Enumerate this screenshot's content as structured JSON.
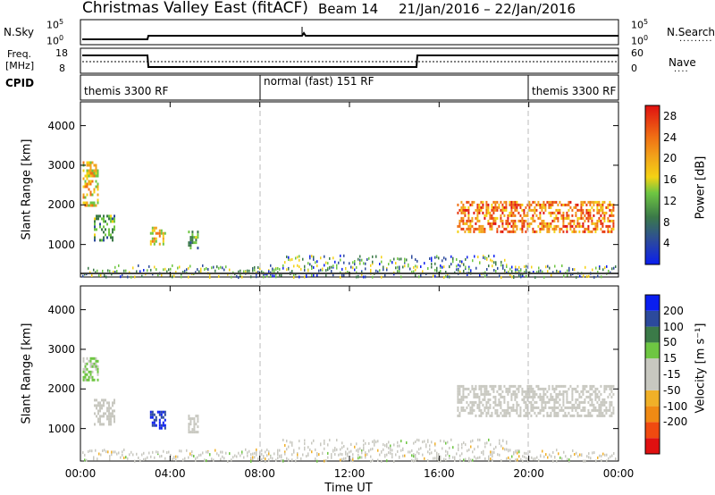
{
  "title": "Christmas Valley East (fitACF)",
  "beam_label": "Beam 14",
  "date_range": "21/Jan/2016 – 22/Jan/2016",
  "top_panels": {
    "nsky_label": "N.Sky",
    "nsky_ticks": [
      "10^5",
      "10^0"
    ],
    "nsearch_label": "N.Search",
    "nsearch_ticks": [
      "10^5",
      "10^0"
    ],
    "freq_label_1": "Freq.",
    "freq_label_2": "[MHz]",
    "freq_ticks": [
      "18",
      "8"
    ],
    "nave_label": "Nave",
    "nave_ticks": [
      "60",
      "0"
    ],
    "cpid_label": "CPID",
    "cpid_segments": [
      {
        "label": "themis 3300 RF",
        "start_hour": 0,
        "end_hour": 8
      },
      {
        "label": "normal (fast) 151 RF",
        "start_hour": 8,
        "end_hour": 20
      },
      {
        "label": "themis 3300 RF",
        "start_hour": 20,
        "end_hour": 24
      }
    ]
  },
  "colors": {
    "power": [
      "#0a1ef0",
      "#2c4a9c",
      "#3b7a48",
      "#6ec642",
      "#f4d214",
      "#f2a21a",
      "#f07014",
      "#e83a10",
      "#e01010"
    ],
    "velocity": [
      "#e01010",
      "#f04a10",
      "#f08a14",
      "#f0b028",
      "#c8c8c0",
      "#c8c8c0",
      "#6ec642",
      "#3b7a48",
      "#2c4a9c",
      "#0a1ef0"
    ]
  },
  "chart_data": [
    {
      "type": "heatmap",
      "name": "power",
      "ylabel": "Slant Range [km]",
      "x_range_hours": [
        0,
        24
      ],
      "ylim": [
        180,
        4600
      ],
      "y_ticks": [
        1000,
        2000,
        3000,
        4000
      ],
      "colorbar_label": "Power [dB]",
      "colorbar_ticks": [
        "4",
        "8",
        "12",
        "16",
        "20",
        "24",
        "28"
      ],
      "colorbar_range": [
        0,
        30
      ],
      "regions": [
        {
          "t": [
            0.1,
            0.75
          ],
          "r": [
            2000,
            3100
          ],
          "v": [
            10,
            22
          ]
        },
        {
          "t": [
            0.6,
            1.5
          ],
          "r": [
            1100,
            1750
          ],
          "v": [
            6,
            14
          ]
        },
        {
          "t": [
            3.1,
            3.8
          ],
          "r": [
            1000,
            1450
          ],
          "v": [
            10,
            22
          ]
        },
        {
          "t": [
            4.8,
            5.2
          ],
          "r": [
            900,
            1350
          ],
          "v": [
            6,
            14
          ]
        },
        {
          "t": [
            16.8,
            23.8
          ],
          "r": [
            1300,
            2100
          ],
          "v": [
            14,
            28
          ]
        }
      ]
    },
    {
      "type": "heatmap",
      "name": "velocity",
      "ylabel": "Slant Range [km]",
      "xlabel": "Time UT",
      "x_ticks": [
        "00:00",
        "04:00",
        "08:00",
        "12:00",
        "16:00",
        "20:00",
        "00:00"
      ],
      "x_range_hours": [
        0,
        24
      ],
      "ylim": [
        180,
        4600
      ],
      "y_ticks": [
        1000,
        2000,
        3000,
        4000
      ],
      "colorbar_label": "Velocity [m s⁻¹]",
      "colorbar_ticks": [
        "200",
        "100",
        "50",
        "15",
        "-15",
        "-50",
        "-100",
        "-200"
      ],
      "colorbar_range": [
        -250,
        250
      ],
      "regions": [
        {
          "t": [
            0.1,
            0.75
          ],
          "r": [
            2200,
            2800
          ],
          "v": [
            40,
            60
          ]
        },
        {
          "t": [
            0.6,
            1.5
          ],
          "r": [
            1100,
            1750
          ],
          "v": [
            -10,
            10
          ]
        },
        {
          "t": [
            3.1,
            3.8
          ],
          "r": [
            1000,
            1450
          ],
          "v": [
            150,
            220
          ]
        },
        {
          "t": [
            4.8,
            5.2
          ],
          "r": [
            900,
            1350
          ],
          "v": [
            -10,
            10
          ]
        },
        {
          "t": [
            16.8,
            23.8
          ],
          "r": [
            1300,
            2100
          ],
          "v": [
            -10,
            10
          ]
        }
      ]
    }
  ]
}
